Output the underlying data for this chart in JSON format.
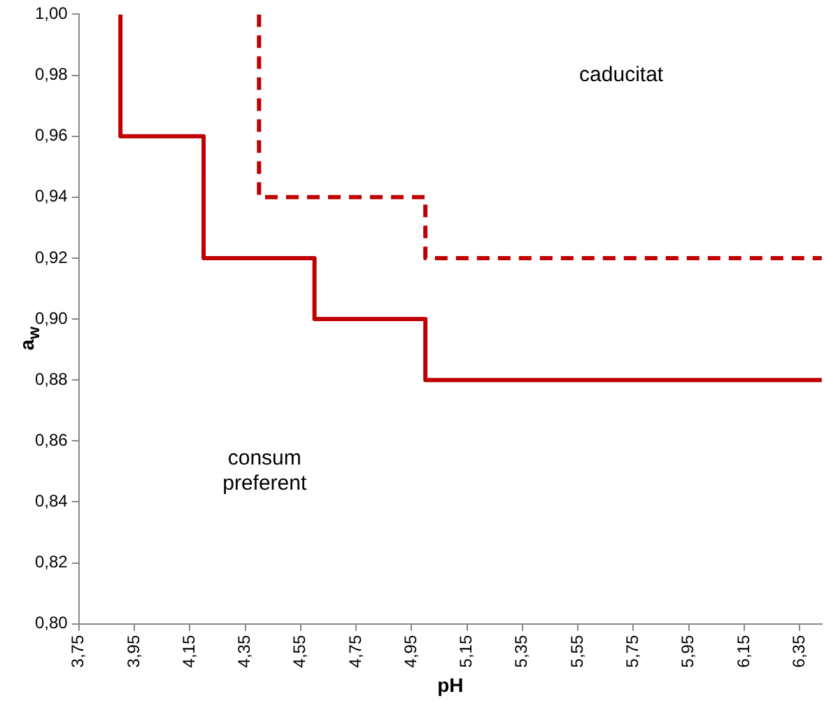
{
  "chart_data": {
    "type": "step",
    "xlabel": "pH",
    "ylabel": "a$_{w}$",
    "xlim": [
      3.75,
      6.43
    ],
    "xticks": [
      {
        "value": 3.75,
        "label": "3,75"
      },
      {
        "value": 3.95,
        "label": "3,95"
      },
      {
        "value": 4.15,
        "label": "4,15"
      },
      {
        "value": 4.35,
        "label": "4,35"
      },
      {
        "value": 4.55,
        "label": "4,55"
      },
      {
        "value": 4.75,
        "label": "4,75"
      },
      {
        "value": 4.95,
        "label": "4,95"
      },
      {
        "value": 5.15,
        "label": "5,15"
      },
      {
        "value": 5.35,
        "label": "5,35"
      },
      {
        "value": 5.55,
        "label": "5,55"
      },
      {
        "value": 5.75,
        "label": "5,75"
      },
      {
        "value": 5.95,
        "label": "5,95"
      },
      {
        "value": 6.15,
        "label": "6,15"
      },
      {
        "value": 6.35,
        "label": "6,35"
      }
    ],
    "ylim": [
      0.8,
      1.0
    ],
    "yticks": [
      {
        "value": 0.8,
        "label": "0,80"
      },
      {
        "value": 0.82,
        "label": "0,82"
      },
      {
        "value": 0.84,
        "label": "0,84"
      },
      {
        "value": 0.86,
        "label": "0,86"
      },
      {
        "value": 0.88,
        "label": "0,88"
      },
      {
        "value": 0.9,
        "label": "0,90"
      },
      {
        "value": 0.92,
        "label": "0,92"
      },
      {
        "value": 0.94,
        "label": "0,94"
      },
      {
        "value": 0.96,
        "label": "0,96"
      },
      {
        "value": 0.98,
        "label": "0,98"
      },
      {
        "value": 1.0,
        "label": "1,00"
      }
    ],
    "grid": false,
    "legend": false,
    "marker": "none",
    "series": [
      {
        "color": "#c00000",
        "line_style": "solid",
        "x": [
          3.9,
          3.9,
          4.2,
          4.6,
          5.0,
          6.43
        ],
        "values": [
          1.0,
          0.96,
          0.92,
          0.9,
          0.88,
          0.88
        ]
      },
      {
        "color": "#c00000",
        "line_style": "dashed",
        "x": [
          4.4,
          4.4,
          5.0,
          6.43
        ],
        "values": [
          1.0,
          0.94,
          0.92,
          0.92
        ]
      }
    ],
    "annotations": [
      "caducitat",
      "consum preferent"
    ]
  }
}
